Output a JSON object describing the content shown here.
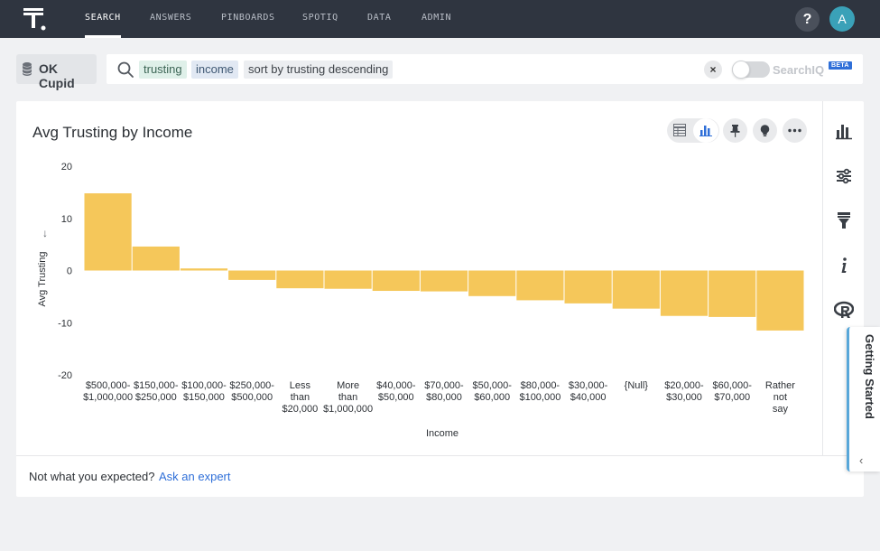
{
  "nav": {
    "items": [
      "SEARCH",
      "ANSWERS",
      "PINBOARDS",
      "SPOTIQ",
      "DATA",
      "ADMIN"
    ],
    "active": "SEARCH",
    "help": "?",
    "avatar": "A"
  },
  "source": {
    "name": "OK Cupid"
  },
  "search": {
    "tokens": [
      "trusting",
      "income",
      "sort by trusting descending"
    ],
    "clear": "×",
    "searchiq_label": "SearchIQ",
    "beta_badge": "BETA",
    "searchiq_enabled": false
  },
  "answer": {
    "title": "Avg Trusting by Income",
    "toolbar_icons": [
      "table-icon",
      "bar-chart-icon",
      "pin-icon",
      "lightbulb-icon",
      "more-icon"
    ],
    "side_icons": [
      "chart-type-icon",
      "settings-sliders-icon",
      "filter-icon",
      "info-icon",
      "r-analysis-icon"
    ]
  },
  "chart_data": {
    "type": "bar",
    "title": "Avg Trusting by Income",
    "xlabel": "Income",
    "ylabel": "Avg Trusting",
    "sort_indicator": "↓",
    "ylim": [
      -20,
      20
    ],
    "yticks": [
      "20",
      "10",
      "0",
      "-10",
      "-20"
    ],
    "categories": [
      [
        "$500,000-",
        "$1,000,000"
      ],
      [
        "$150,000-",
        "$250,000"
      ],
      [
        "$100,000-",
        "$150,000"
      ],
      [
        "$250,000-",
        "$500,000"
      ],
      [
        "Less",
        "than",
        "$20,000"
      ],
      [
        "More",
        "than",
        "$1,000,000"
      ],
      [
        "$40,000-",
        "$50,000"
      ],
      [
        "$70,000-",
        "$80,000"
      ],
      [
        "$50,000-",
        "$60,000"
      ],
      [
        "$80,000-",
        "$100,000"
      ],
      [
        "$30,000-",
        "$40,000"
      ],
      [
        "{Null}"
      ],
      [
        "$20,000-",
        "$30,000"
      ],
      [
        "$60,000-",
        "$70,000"
      ],
      [
        "Rather",
        "not",
        "say"
      ]
    ],
    "values": [
      14.8,
      4.6,
      0.4,
      -1.8,
      -3.4,
      -3.5,
      -3.9,
      -4.0,
      -4.9,
      -5.7,
      -6.3,
      -7.3,
      -8.7,
      -8.9,
      -11.5
    ],
    "bar_color": "#f5c75a",
    "grid": false
  },
  "footer": {
    "question": "Not what you expected?",
    "link": "Ask an expert"
  },
  "getting_started": {
    "label": "Getting Started",
    "chevron": "‹"
  }
}
